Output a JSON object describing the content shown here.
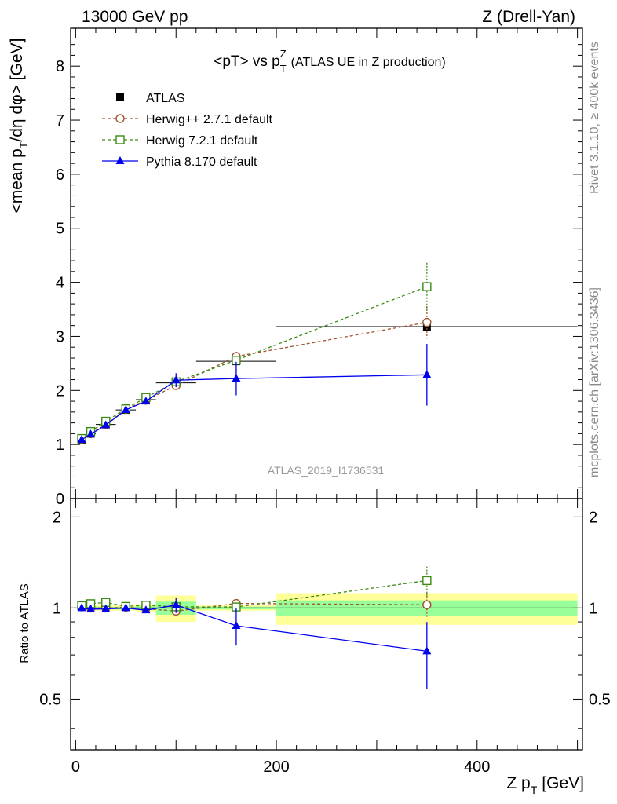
{
  "header": {
    "left": "13000 GeV pp",
    "right": "Z (Drell-Yan)"
  },
  "side": {
    "rivet": "Rivet 3.1.10, ≥ 400k events",
    "mcplots": "mcplots.cern.ch [arXiv:1306.3436]"
  },
  "chart_data": {
    "type": "line",
    "title_main": "<pT> vs p",
    "title_sup": "Z",
    "title_sub": "T",
    "title_suffix": "(ATLAS UE in Z production)",
    "ylabel_main": "<mean p",
    "ylabel_sub": "T",
    "ylabel_rest": "/dη dφ> [GeV]",
    "ratio_ylabel": "Ratio to ATLAS",
    "xlabel_main": "Z p",
    "xlabel_sub": "T",
    "xlabel_rest": "[GeV]",
    "watermark": "ATLAS_2019_I1736531",
    "xlim": [
      -5,
      505
    ],
    "ylim": [
      0,
      8.7
    ],
    "ratio_ylim": [
      0.34,
      2.3
    ],
    "ratio_scale": "log",
    "x_ticks": [
      "0",
      "200",
      "400"
    ],
    "y_ticks": [
      "0",
      "1",
      "2",
      "3",
      "4",
      "5",
      "6",
      "7",
      "8"
    ],
    "ratio_ticks": [
      "0.5",
      "1",
      "2"
    ],
    "x": [
      6,
      15,
      30,
      50,
      70,
      100,
      160,
      350
    ],
    "xerr_low": [
      4,
      5,
      10,
      10,
      10,
      20,
      40,
      150
    ],
    "xerr_high": [
      4,
      5,
      10,
      10,
      10,
      20,
      40,
      150
    ],
    "reference": {
      "name": "ATLAS",
      "values": [
        1.09,
        1.2,
        1.37,
        1.64,
        1.83,
        2.14,
        2.54,
        3.18
      ],
      "band_inner": [
        0.01,
        0.01,
        0.01,
        0.01,
        0.015,
        0.05,
        0.01,
        0.06
      ],
      "band_outer": [
        0.02,
        0.02,
        0.02,
        0.02,
        0.03,
        0.1,
        0.02,
        0.12
      ]
    },
    "series": [
      {
        "name": "Herwig++ 2.7.1 default",
        "color": "#a0522d",
        "marker": "open-circle",
        "dash": "4,3",
        "values": [
          1.1,
          1.2,
          1.37,
          1.65,
          1.82,
          2.09,
          2.63,
          3.26
        ],
        "err": [
          0.02,
          0.02,
          0.02,
          0.03,
          0.03,
          0.04,
          0.08,
          0.3
        ]
      },
      {
        "name": "Herwig 7.2.1 default",
        "color": "#3a8a13",
        "marker": "open-square",
        "dash": "4,3",
        "values": [
          1.11,
          1.24,
          1.43,
          1.66,
          1.87,
          2.16,
          2.56,
          3.92
        ],
        "err": [
          0.02,
          0.02,
          0.02,
          0.03,
          0.03,
          0.05,
          0.08,
          0.44
        ]
      },
      {
        "name": "Pythia 8.170 default",
        "color": "#0000ee",
        "marker": "filled-triangle",
        "dash": "",
        "values": [
          1.09,
          1.19,
          1.36,
          1.64,
          1.8,
          2.19,
          2.22,
          2.29
        ],
        "err": [
          0.02,
          0.02,
          0.02,
          0.03,
          0.03,
          0.13,
          0.31,
          0.57
        ]
      }
    ]
  }
}
